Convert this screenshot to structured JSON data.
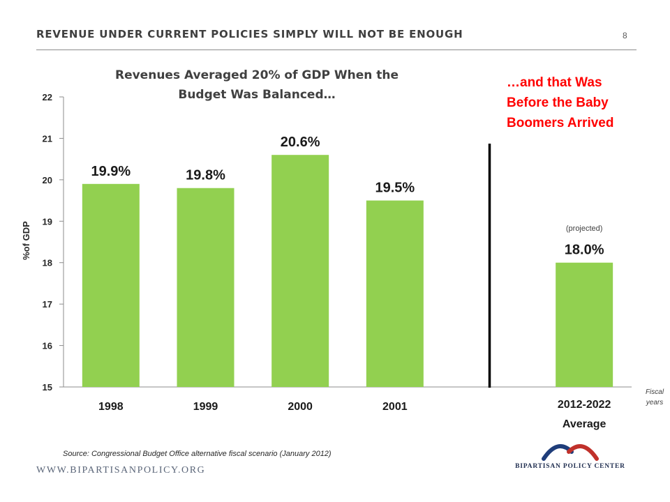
{
  "header": {
    "title": "REVENUE UNDER CURRENT POLICIES SIMPLY WILL NOT BE ENOUGH",
    "page_number": "8"
  },
  "callout": {
    "text": "…and that Was Before the Baby Boomers Arrived",
    "color": "#ff0000"
  },
  "projected_note": "(projected)",
  "source": "Source: Congressional Budget Office alternative fiscal scenario (January 2012)",
  "footer": {
    "website": "WWW.BIPARTISANPOLICY.ORG",
    "logo_text": "BIPARTISAN POLICY CENTER"
  },
  "colors": {
    "bar": "#92d050",
    "logo_red": "#c0312b",
    "logo_blue": "#1f3d7a"
  },
  "chart_data": {
    "type": "bar",
    "title": "Revenues Averaged 20% of GDP When the Budget Was Balanced…",
    "ylabel": "%of GDP",
    "xlabel": "Fiscal years",
    "ylim": [
      15,
      22
    ],
    "yticks": [
      "15",
      "16",
      "17",
      "18",
      "19",
      "20",
      "21",
      "22"
    ],
    "grid": false,
    "categories": [
      "1998",
      "1999",
      "2000",
      "2001",
      "",
      "2012-2022 Average"
    ],
    "values": [
      19.9,
      19.8,
      20.6,
      19.5,
      null,
      18.0
    ],
    "data_labels": [
      "19.9%",
      "19.8%",
      "20.6%",
      "19.5%",
      "",
      "18.0%"
    ],
    "divider_after_category": 3
  }
}
